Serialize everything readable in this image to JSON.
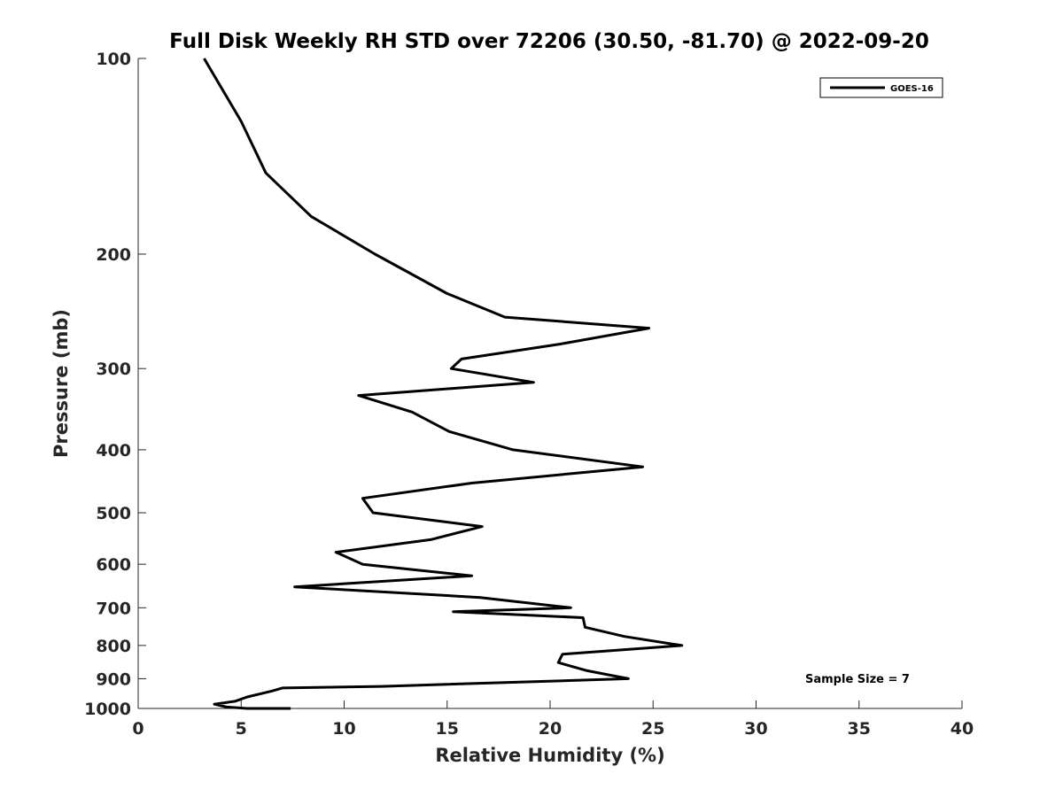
{
  "chart_data": {
    "type": "line",
    "title": "Full Disk Weekly RH STD over 72206 (30.50, -81.70) @ 2022-09-20",
    "xlabel": "Relative Humidity (%)",
    "ylabel": "Pressure (mb)",
    "xlim": [
      0,
      40
    ],
    "ylim": [
      100,
      1000
    ],
    "y_scale": "log",
    "y_reversed": true,
    "x_ticks": [
      0,
      5,
      10,
      15,
      20,
      25,
      30,
      35,
      40
    ],
    "y_ticks": [
      100,
      200,
      300,
      400,
      500,
      600,
      700,
      800,
      900,
      1000
    ],
    "grid": false,
    "legend_position": "top-right",
    "series": [
      {
        "name": "GOES-16",
        "color": "#000000",
        "x": [
          3.2,
          5.0,
          6.2,
          8.4,
          11.5,
          15.0,
          17.8,
          24.8,
          20.5,
          15.7,
          15.2,
          19.2,
          10.7,
          13.3,
          15.1,
          18.2,
          24.5,
          16.2,
          10.9,
          11.4,
          16.7,
          14.2,
          9.6,
          10.9,
          16.2,
          7.6,
          16.6,
          21.0,
          15.3,
          21.6,
          21.7,
          23.6,
          26.4,
          20.6,
          20.4,
          21.8,
          23.8,
          11.8,
          7.0,
          6.5,
          5.3,
          4.7,
          3.7,
          4.3,
          5.3,
          7.4
        ],
        "y": [
          100,
          125,
          150,
          175,
          200,
          230,
          250,
          260,
          275,
          290,
          300,
          315,
          330,
          350,
          375,
          400,
          425,
          450,
          475,
          500,
          525,
          550,
          575,
          600,
          625,
          650,
          675,
          700,
          710,
          725,
          750,
          775,
          800,
          825,
          850,
          875,
          900,
          925,
          930,
          940,
          960,
          975,
          985,
          995,
          1000,
          1000
        ]
      }
    ],
    "annotations": [
      "Sample Size = 7"
    ]
  }
}
